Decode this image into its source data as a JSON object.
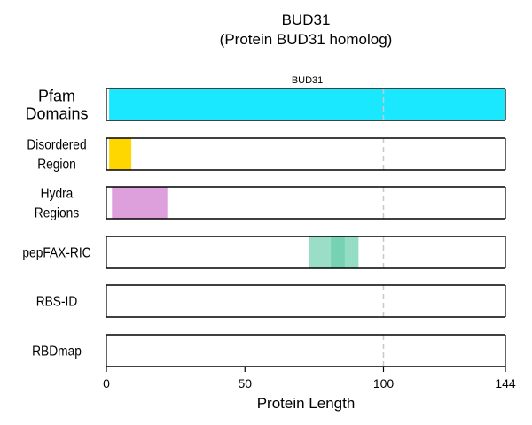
{
  "chart_data": {
    "type": "bar",
    "title": "BUD31",
    "subtitle": "(Protein BUD31 homolog)",
    "xlabel": "Protein Length",
    "xlim": [
      0,
      144
    ],
    "xticks": [
      "0",
      "50",
      "100",
      "144"
    ],
    "xtick_values": [
      0,
      50,
      100,
      144
    ],
    "reference_line_x": 100,
    "tracks": [
      {
        "label_lines": [
          "Pfam",
          "Domains"
        ],
        "segments": [
          {
            "start": 1,
            "end": 144,
            "color": "#1ae8fe",
            "opacity": 1,
            "label": "BUD31"
          }
        ]
      },
      {
        "label_lines": [
          "Disordered",
          "Region"
        ],
        "segments": [
          {
            "start": 1,
            "end": 9,
            "color": "#ffd700",
            "opacity": 1
          }
        ]
      },
      {
        "label_lines": [
          "Hydra",
          "Regions"
        ],
        "segments": [
          {
            "start": 2,
            "end": 22,
            "color": "#dda0dd",
            "opacity": 1
          }
        ]
      },
      {
        "label_lines": [
          "pepFAX-RIC"
        ],
        "segments": [
          {
            "start": 73,
            "end": 86,
            "color": "#66cdaa",
            "opacity": 0.65
          },
          {
            "start": 81,
            "end": 91,
            "color": "#66cdaa",
            "opacity": 0.7
          }
        ]
      },
      {
        "label_lines": [
          "RBS-ID"
        ],
        "segments": []
      },
      {
        "label_lines": [
          "RBDmap"
        ],
        "segments": []
      }
    ]
  }
}
